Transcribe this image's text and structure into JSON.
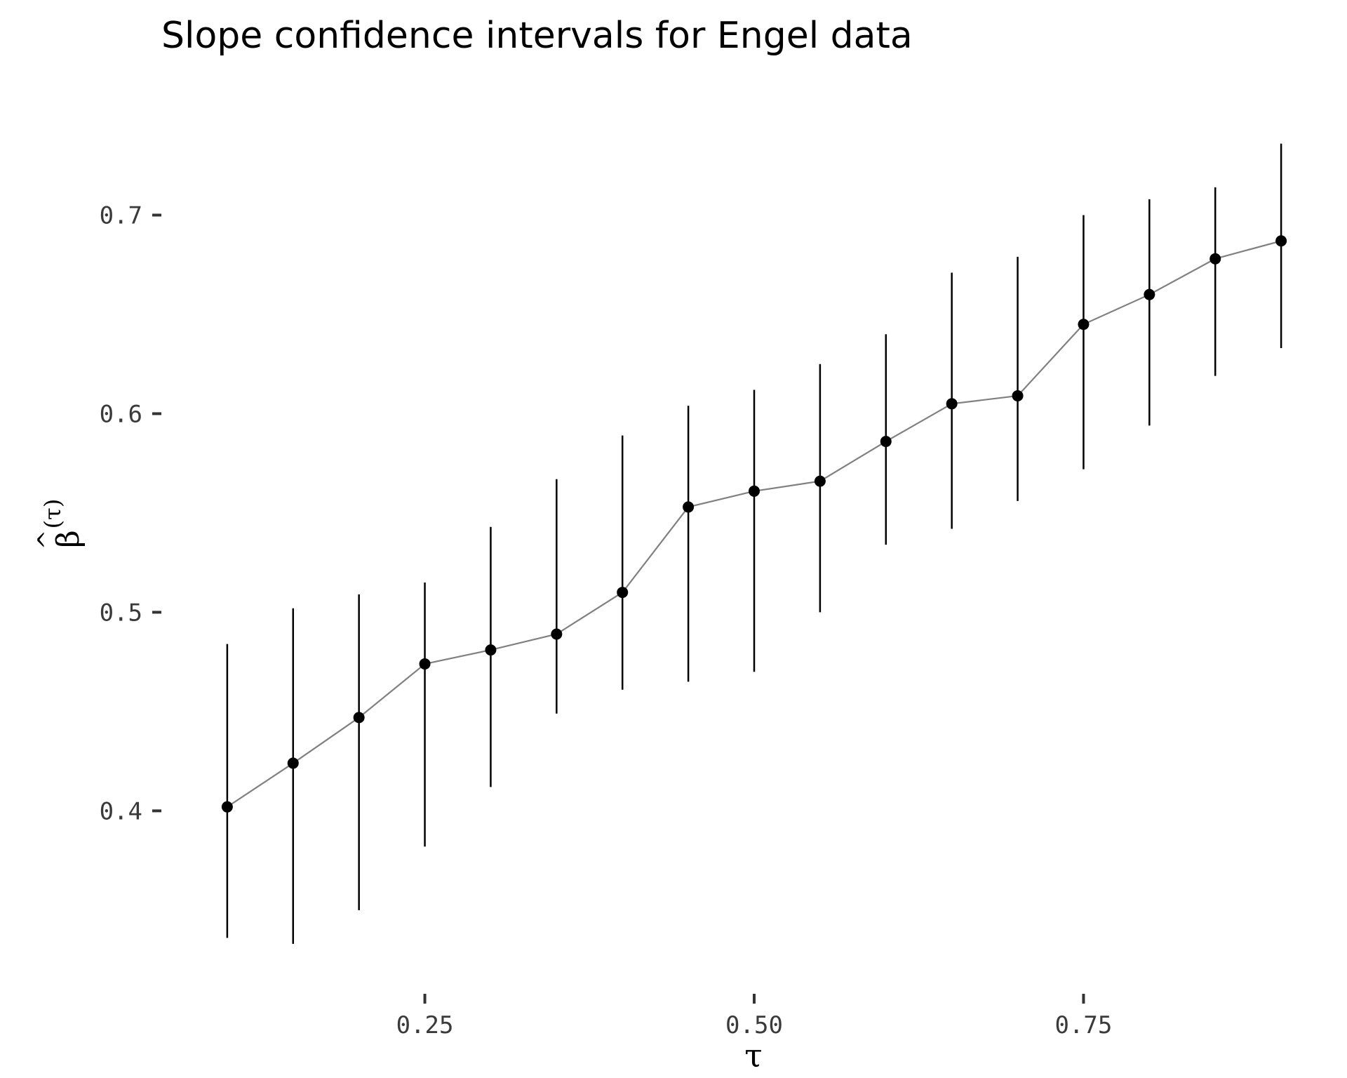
{
  "chart_data": {
    "type": "scatter",
    "title": "Slope confidence intervals for Engel data",
    "xlabel": "τ",
    "ylabel": "β̂(τ)",
    "ylabel_base": "β",
    "ylabel_hat": "^",
    "ylabel_superscript": "(τ)",
    "xlim": [
      0.05,
      0.95
    ],
    "ylim": [
      0.31,
      0.75
    ],
    "x_ticks": [
      0.25,
      0.5,
      0.75
    ],
    "x_tick_labels": [
      "0.25",
      "0.50",
      "0.75"
    ],
    "y_ticks": [
      0.4,
      0.5,
      0.6,
      0.7
    ],
    "y_tick_labels": [
      "0.4",
      "0.5",
      "0.6",
      "0.7"
    ],
    "grid": false,
    "legend": "none",
    "colors": {
      "point": "#000000",
      "errorbar": "#000000",
      "line": "#808080",
      "text": "#000000",
      "tick_text": "#3a3a3a"
    },
    "series": [
      {
        "x": [
          0.1,
          0.15,
          0.2,
          0.25,
          0.3,
          0.35,
          0.4,
          0.45,
          0.5,
          0.55,
          0.6,
          0.65,
          0.7,
          0.75,
          0.8,
          0.85,
          0.9
        ],
        "y": [
          0.402,
          0.424,
          0.447,
          0.474,
          0.481,
          0.489,
          0.51,
          0.553,
          0.561,
          0.566,
          0.586,
          0.605,
          0.609,
          0.645,
          0.66,
          0.678,
          0.687
        ],
        "lower": [
          0.336,
          0.333,
          0.35,
          0.382,
          0.412,
          0.449,
          0.461,
          0.465,
          0.47,
          0.5,
          0.534,
          0.542,
          0.556,
          0.572,
          0.594,
          0.619,
          0.633
        ],
        "upper": [
          0.484,
          0.502,
          0.509,
          0.515,
          0.543,
          0.567,
          0.589,
          0.604,
          0.612,
          0.625,
          0.64,
          0.671,
          0.679,
          0.7,
          0.708,
          0.714,
          0.736
        ]
      }
    ]
  }
}
